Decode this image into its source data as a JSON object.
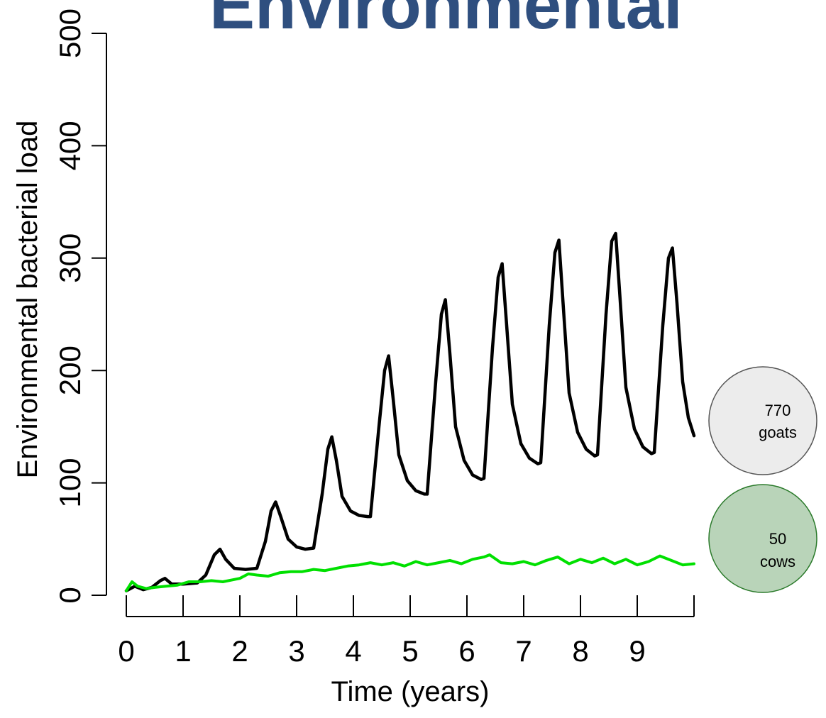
{
  "slide_title": "Environmental",
  "chart_data": {
    "type": "line",
    "xlabel": "Time (years)",
    "ylabel": "Environmental bacterial load",
    "xlim": [
      0,
      10
    ],
    "ylim": [
      0,
      500
    ],
    "x_tick_labels": [
      "0",
      "1",
      "2",
      "3",
      "4",
      "5",
      "6",
      "7",
      "8",
      "9"
    ],
    "y_tick_labels": [
      "0",
      "100",
      "200",
      "300",
      "400",
      "500"
    ],
    "series": [
      {
        "color": "#000000",
        "points": [
          [
            0.0,
            4
          ],
          [
            0.15,
            8
          ],
          [
            0.3,
            5
          ],
          [
            0.45,
            7
          ],
          [
            0.6,
            13
          ],
          [
            0.68,
            15
          ],
          [
            0.8,
            10
          ],
          [
            1.0,
            10
          ],
          [
            1.25,
            11
          ],
          [
            1.4,
            18
          ],
          [
            1.55,
            36
          ],
          [
            1.65,
            41
          ],
          [
            1.75,
            32
          ],
          [
            1.9,
            24
          ],
          [
            2.1,
            23
          ],
          [
            2.3,
            24
          ],
          [
            2.45,
            48
          ],
          [
            2.55,
            75
          ],
          [
            2.63,
            83
          ],
          [
            2.72,
            70
          ],
          [
            2.85,
            50
          ],
          [
            3.0,
            43
          ],
          [
            3.15,
            41
          ],
          [
            3.3,
            42
          ],
          [
            3.45,
            90
          ],
          [
            3.55,
            130
          ],
          [
            3.62,
            141
          ],
          [
            3.7,
            120
          ],
          [
            3.8,
            88
          ],
          [
            3.95,
            75
          ],
          [
            4.1,
            71
          ],
          [
            4.25,
            70
          ],
          [
            4.3,
            70
          ],
          [
            4.45,
            150
          ],
          [
            4.55,
            200
          ],
          [
            4.62,
            213
          ],
          [
            4.7,
            175
          ],
          [
            4.8,
            125
          ],
          [
            4.95,
            102
          ],
          [
            5.1,
            93
          ],
          [
            5.25,
            90
          ],
          [
            5.3,
            90
          ],
          [
            5.45,
            190
          ],
          [
            5.55,
            250
          ],
          [
            5.62,
            263
          ],
          [
            5.7,
            215
          ],
          [
            5.8,
            150
          ],
          [
            5.95,
            120
          ],
          [
            6.1,
            107
          ],
          [
            6.25,
            103
          ],
          [
            6.3,
            104
          ],
          [
            6.45,
            220
          ],
          [
            6.55,
            283
          ],
          [
            6.62,
            295
          ],
          [
            6.7,
            240
          ],
          [
            6.8,
            170
          ],
          [
            6.95,
            135
          ],
          [
            7.1,
            122
          ],
          [
            7.25,
            117
          ],
          [
            7.3,
            118
          ],
          [
            7.45,
            240
          ],
          [
            7.55,
            305
          ],
          [
            7.62,
            316
          ],
          [
            7.7,
            255
          ],
          [
            7.8,
            180
          ],
          [
            7.95,
            145
          ],
          [
            8.1,
            130
          ],
          [
            8.25,
            124
          ],
          [
            8.3,
            125
          ],
          [
            8.45,
            250
          ],
          [
            8.55,
            315
          ],
          [
            8.62,
            322
          ],
          [
            8.7,
            262
          ],
          [
            8.8,
            185
          ],
          [
            8.95,
            148
          ],
          [
            9.1,
            132
          ],
          [
            9.25,
            126
          ],
          [
            9.3,
            127
          ],
          [
            9.45,
            240
          ],
          [
            9.55,
            300
          ],
          [
            9.62,
            309
          ],
          [
            9.7,
            260
          ],
          [
            9.8,
            190
          ],
          [
            9.9,
            158
          ],
          [
            10.0,
            142
          ]
        ]
      },
      {
        "color": "#00e000",
        "points": [
          [
            0.0,
            4
          ],
          [
            0.1,
            12
          ],
          [
            0.2,
            8
          ],
          [
            0.35,
            6
          ],
          [
            0.5,
            7
          ],
          [
            0.7,
            8
          ],
          [
            0.9,
            9
          ],
          [
            1.1,
            12
          ],
          [
            1.3,
            12
          ],
          [
            1.5,
            13
          ],
          [
            1.7,
            12
          ],
          [
            1.9,
            14
          ],
          [
            2.0,
            15
          ],
          [
            2.15,
            19
          ],
          [
            2.3,
            18
          ],
          [
            2.5,
            17
          ],
          [
            2.7,
            20
          ],
          [
            2.9,
            21
          ],
          [
            3.1,
            21
          ],
          [
            3.3,
            23
          ],
          [
            3.5,
            22
          ],
          [
            3.7,
            24
          ],
          [
            3.9,
            26
          ],
          [
            4.1,
            27
          ],
          [
            4.3,
            29
          ],
          [
            4.5,
            27
          ],
          [
            4.7,
            29
          ],
          [
            4.9,
            26
          ],
          [
            5.1,
            30
          ],
          [
            5.3,
            27
          ],
          [
            5.5,
            29
          ],
          [
            5.7,
            31
          ],
          [
            5.9,
            28
          ],
          [
            6.1,
            32
          ],
          [
            6.3,
            34
          ],
          [
            6.4,
            36
          ],
          [
            6.6,
            29
          ],
          [
            6.8,
            28
          ],
          [
            7.0,
            30
          ],
          [
            7.2,
            27
          ],
          [
            7.4,
            31
          ],
          [
            7.6,
            34
          ],
          [
            7.8,
            28
          ],
          [
            8.0,
            32
          ],
          [
            8.2,
            29
          ],
          [
            8.4,
            33
          ],
          [
            8.6,
            28
          ],
          [
            8.8,
            32
          ],
          [
            9.0,
            27
          ],
          [
            9.2,
            30
          ],
          [
            9.4,
            35
          ],
          [
            9.6,
            31
          ],
          [
            9.8,
            27
          ],
          [
            10.0,
            28
          ]
        ]
      }
    ]
  },
  "annotations": {
    "goats": {
      "number": "770",
      "label": "goats",
      "fill": "#ececec",
      "stroke": "#555555"
    },
    "cows": {
      "number": "50",
      "label": "cows",
      "fill": "#b9d4b9",
      "stroke": "#2a7a2a"
    }
  }
}
